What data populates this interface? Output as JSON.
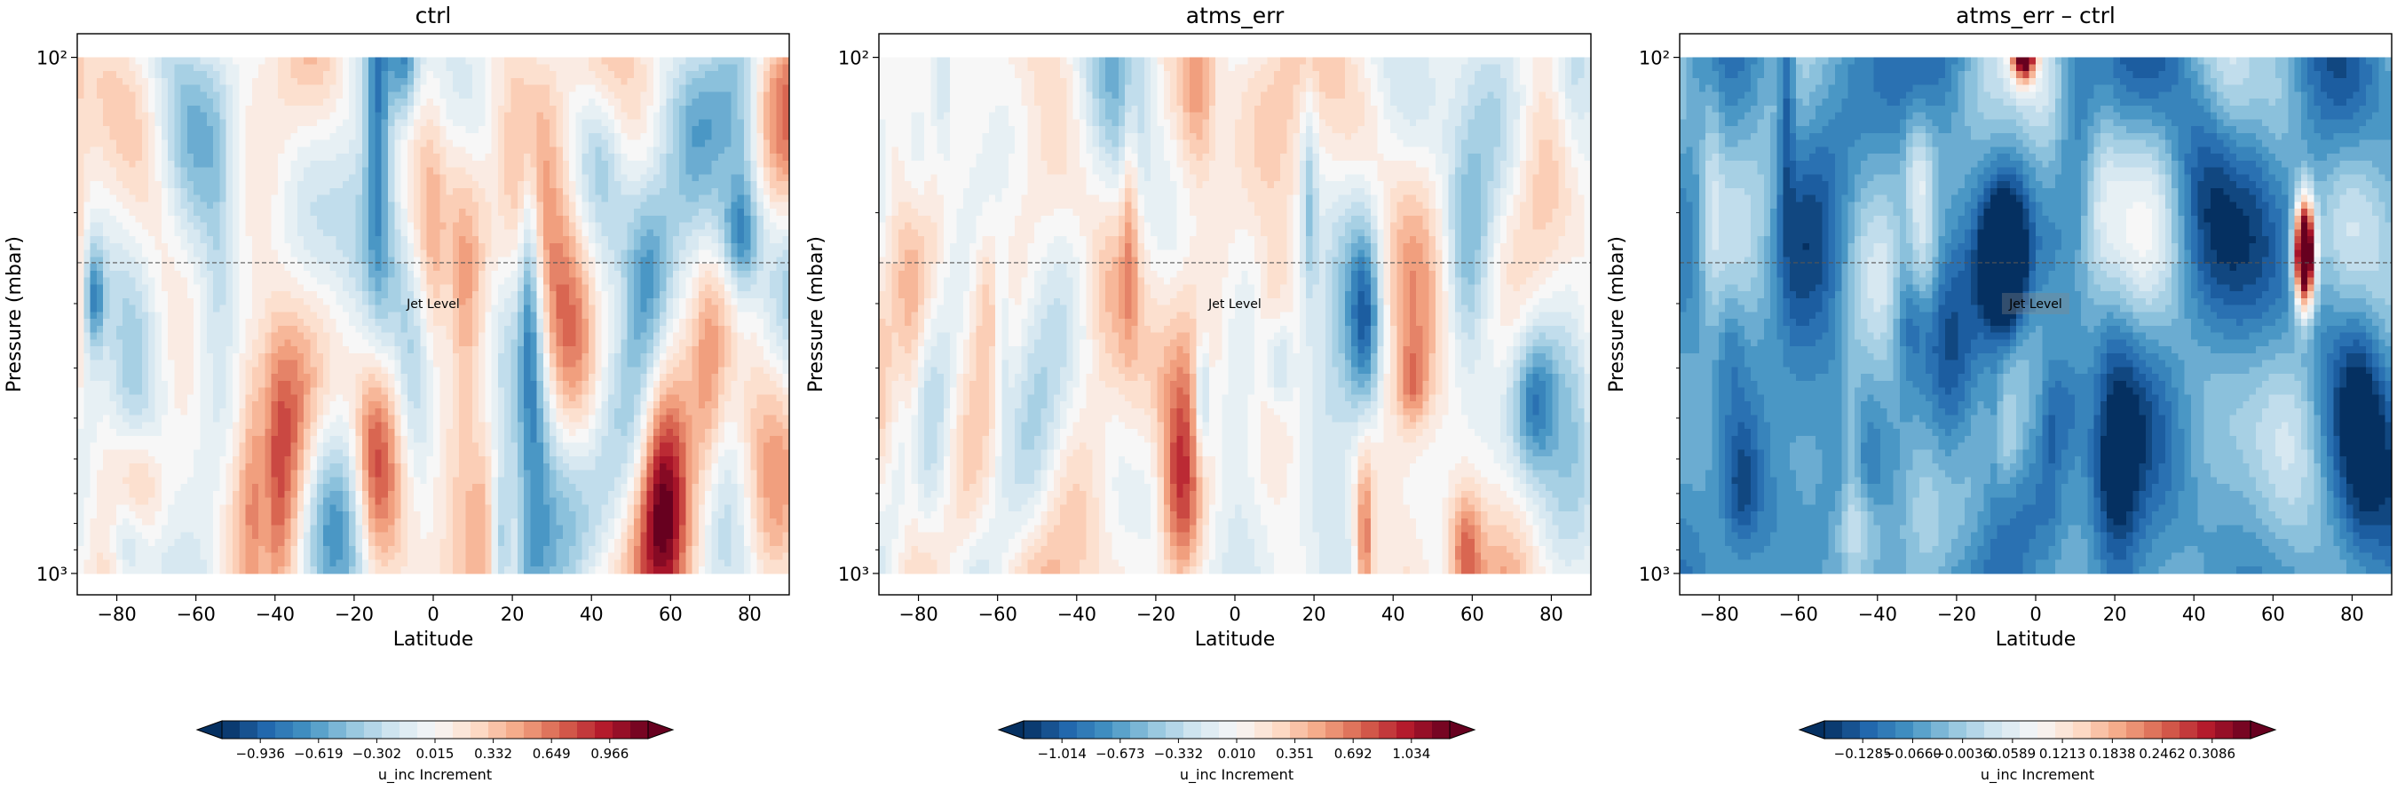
{
  "chart_data": [
    {
      "type": "heatmap",
      "title": "ctrl",
      "xlabel": "Latitude",
      "ylabel": "Pressure (mbar)",
      "x_ticks": [
        -80,
        -60,
        -40,
        -20,
        0,
        20,
        40,
        60,
        80
      ],
      "xlim": [
        -90,
        90
      ],
      "y_scale": "log",
      "y_ticks": [
        100,
        1000
      ],
      "y_tick_labels": [
        "10²",
        "10³"
      ],
      "ylim": [
        1100,
        90
      ],
      "data_pressure_range": [
        1000,
        100
      ],
      "reference_line": {
        "pressure": 250,
        "label": "Jet Level",
        "label_x": 0,
        "label_pressure": 300
      },
      "colormap": "RdBu_r",
      "colorbar": {
        "label": "u_inc Increment",
        "tick_labels": [
          "−0.936",
          "−0.619",
          "−0.302",
          "0.015",
          "0.332",
          "0.649",
          "0.966"
        ],
        "range": [
          -1.1,
          1.1
        ],
        "extend": "both"
      },
      "field_scale": 0.55,
      "field_bias": 0.02
    },
    {
      "type": "heatmap",
      "title": "atms_err",
      "xlabel": "Latitude",
      "ylabel": "Pressure (mbar)",
      "x_ticks": [
        -80,
        -60,
        -40,
        -20,
        0,
        20,
        40,
        60,
        80
      ],
      "xlim": [
        -90,
        90
      ],
      "y_scale": "log",
      "y_ticks": [
        100,
        1000
      ],
      "y_tick_labels": [
        "10²",
        "10³"
      ],
      "ylim": [
        1100,
        90
      ],
      "data_pressure_range": [
        1000,
        100
      ],
      "reference_line": {
        "pressure": 250,
        "label": "Jet Level",
        "label_x": 0,
        "label_pressure": 300
      },
      "colormap": "RdBu_r",
      "colorbar": {
        "label": "u_inc Increment",
        "tick_labels": [
          "−1.014",
          "−0.673",
          "−0.332",
          "0.010",
          "0.351",
          "0.692",
          "1.034"
        ],
        "range": [
          -1.2,
          1.2
        ],
        "extend": "both"
      },
      "field_scale": 0.55,
      "field_bias": 0.02
    },
    {
      "type": "heatmap",
      "title": "atms_err – ctrl",
      "xlabel": "Latitude",
      "ylabel": "Pressure (mbar)",
      "x_ticks": [
        -80,
        -60,
        -40,
        -20,
        0,
        20,
        40,
        60,
        80
      ],
      "xlim": [
        -90,
        90
      ],
      "y_scale": "log",
      "y_ticks": [
        100,
        1000
      ],
      "y_tick_labels": [
        "10²",
        "10³"
      ],
      "ylim": [
        1100,
        90
      ],
      "data_pressure_range": [
        1000,
        100
      ],
      "reference_line": {
        "pressure": 250,
        "label": "Jet Level",
        "label_x": 0,
        "label_pressure": 300
      },
      "colormap": "RdBu_r",
      "colorbar": {
        "label": "u_inc Increment",
        "tick_labels": [
          "−0.1285",
          "−0.0660",
          "−0.0036",
          "0.0589",
          "0.1213",
          "0.1838",
          "0.2462",
          "0.3086"
        ],
        "range": [
          -0.16,
          0.34
        ],
        "extend": "both"
      },
      "field_scale": 0.09,
      "field_bias": -0.05
    }
  ]
}
